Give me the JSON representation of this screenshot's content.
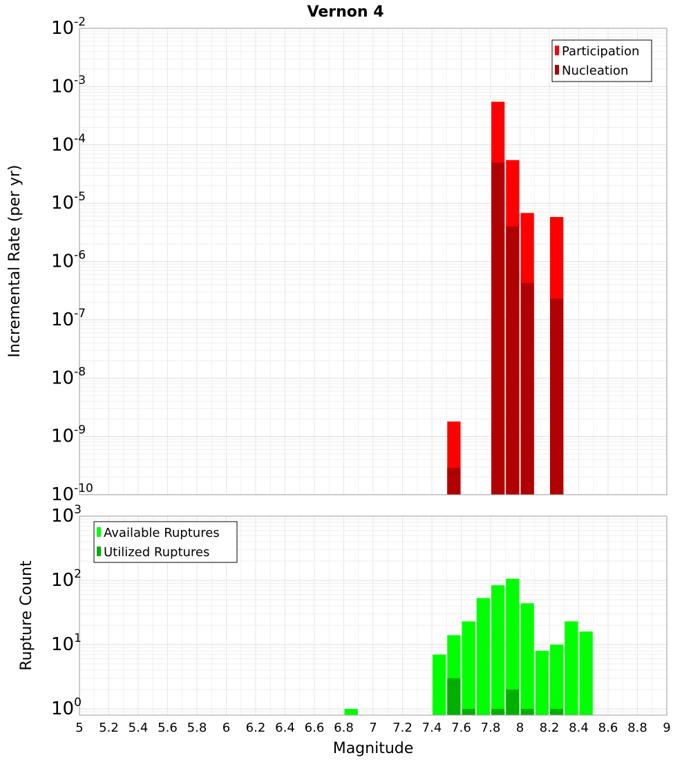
{
  "chart_data": [
    {
      "type": "bar",
      "title": "Vernon 4",
      "ylabel": "Incremental Rate (per yr)",
      "xlabel": "",
      "yscale": "log",
      "ylim": [
        1e-10,
        0.01
      ],
      "xlim": [
        5,
        9
      ],
      "grid": true,
      "legend_position": "top-right",
      "y_tick_labels": [
        {
          "base": "10",
          "exp": "-10"
        },
        {
          "base": "10",
          "exp": "-9"
        },
        {
          "base": "10",
          "exp": "-8"
        },
        {
          "base": "10",
          "exp": "-7"
        },
        {
          "base": "10",
          "exp": "-6"
        },
        {
          "base": "10",
          "exp": "-5"
        },
        {
          "base": "10",
          "exp": "-4"
        },
        {
          "base": "10",
          "exp": "-3"
        },
        {
          "base": "10",
          "exp": "-2"
        }
      ],
      "series": [
        {
          "name": "Participation",
          "color": "#ff0000",
          "points": [
            {
              "x": 7.55,
              "y": 1.8e-09
            },
            {
              "x": 7.85,
              "y": 0.00055
            },
            {
              "x": 7.95,
              "y": 5.5e-05
            },
            {
              "x": 8.05,
              "y": 6.8e-06
            },
            {
              "x": 8.25,
              "y": 5.8e-06
            }
          ]
        },
        {
          "name": "Nucleation",
          "color": "#b00000",
          "points": [
            {
              "x": 7.55,
              "y": 2.9e-10
            },
            {
              "x": 7.85,
              "y": 5e-05
            },
            {
              "x": 7.95,
              "y": 4e-06
            },
            {
              "x": 8.05,
              "y": 4.3e-07
            },
            {
              "x": 8.25,
              "y": 2.3e-07
            }
          ]
        }
      ]
    },
    {
      "type": "bar",
      "title": "",
      "ylabel": "Rupture Count",
      "xlabel": "Magnitude",
      "yscale": "log",
      "ylim": [
        0.8,
        1000
      ],
      "xlim": [
        5,
        9
      ],
      "grid": true,
      "legend_position": "top-left",
      "y_tick_labels": [
        {
          "base": "10",
          "exp": "0"
        },
        {
          "base": "10",
          "exp": "1"
        },
        {
          "base": "10",
          "exp": "2"
        },
        {
          "base": "10",
          "exp": "3"
        }
      ],
      "x_tick_labels": [
        "5",
        "5.2",
        "5.4",
        "5.6",
        "5.8",
        "6",
        "6.2",
        "6.4",
        "6.6",
        "6.8",
        "7",
        "7.2",
        "7.4",
        "7.6",
        "7.8",
        "8",
        "8.2",
        "8.4",
        "8.6",
        "8.8",
        "9"
      ],
      "series": [
        {
          "name": "Available Ruptures",
          "color": "#00ff00",
          "points": [
            {
              "x": 6.85,
              "y": 1
            },
            {
              "x": 7.45,
              "y": 7
            },
            {
              "x": 7.55,
              "y": 14
            },
            {
              "x": 7.65,
              "y": 23
            },
            {
              "x": 7.75,
              "y": 53
            },
            {
              "x": 7.85,
              "y": 84
            },
            {
              "x": 7.95,
              "y": 106
            },
            {
              "x": 8.05,
              "y": 44
            },
            {
              "x": 8.15,
              "y": 8
            },
            {
              "x": 8.25,
              "y": 10
            },
            {
              "x": 8.35,
              "y": 23
            },
            {
              "x": 8.45,
              "y": 16
            }
          ]
        },
        {
          "name": "Utilized Ruptures",
          "color": "#00b000",
          "points": [
            {
              "x": 7.55,
              "y": 3
            },
            {
              "x": 7.65,
              "y": 1
            },
            {
              "x": 7.85,
              "y": 1
            },
            {
              "x": 7.95,
              "y": 2
            },
            {
              "x": 8.05,
              "y": 1
            },
            {
              "x": 8.25,
              "y": 1
            }
          ]
        }
      ]
    }
  ]
}
